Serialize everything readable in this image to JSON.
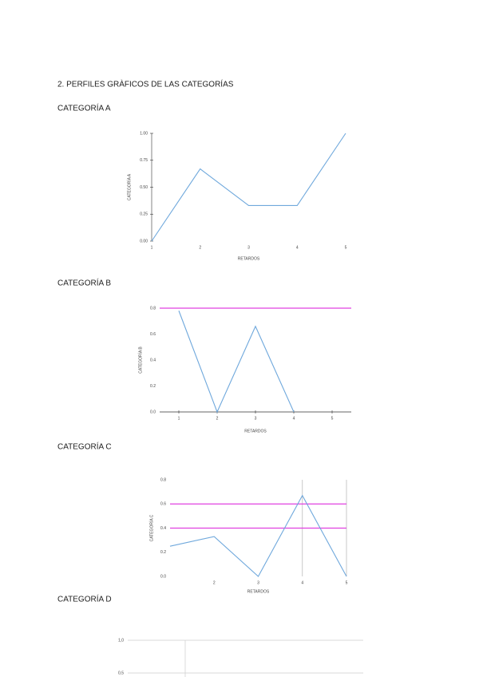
{
  "header": {
    "title": "2. PERFILES GRÀFICOS DE LAS CATEGORÍAS"
  },
  "sections": [
    {
      "title": "CATEGORÍA A",
      "chart_data": {
        "type": "line",
        "x_label": "RETARDOS",
        "y_label": "CATEGORÍA A",
        "x": [
          1,
          2,
          3,
          4,
          5
        ],
        "series": [
          {
            "color": "#6fa8dc",
            "values": [
              0,
              0.67,
              0.33,
              0.33,
              1.0
            ]
          }
        ],
        "xlim": [
          1,
          5
        ],
        "xticks": [
          1,
          2,
          3,
          4,
          5
        ],
        "ylim": [
          0,
          1
        ],
        "yticks": [
          {
            "value": 0,
            "label": "0.00"
          },
          {
            "value": 0.25,
            "label": "0.25"
          },
          {
            "value": 0.5,
            "label": "0.50"
          },
          {
            "value": 0.75,
            "label": "0.75"
          },
          {
            "value": 1,
            "label": "1.00"
          }
        ],
        "spines": [
          "left"
        ]
      }
    },
    {
      "title": "CATEGORÍA B",
      "chart_data": {
        "type": "line",
        "x_label": "RETARDOS",
        "y_label": "CATEGORÍA B",
        "x": [
          1,
          2,
          3,
          4,
          5
        ],
        "series": [
          {
            "color": "#6fa8dc",
            "values": [
              0.78,
              0,
              0.66,
              0,
              null
            ]
          }
        ],
        "xlim": [
          0.5,
          5.5
        ],
        "xticks": [
          1,
          2,
          3,
          4,
          5
        ],
        "ylim": [
          0,
          0.8
        ],
        "yticks": [
          {
            "value": 0,
            "label": "0.0"
          },
          {
            "value": 0.2,
            "label": "0.2"
          },
          {
            "value": 0.4,
            "label": "0.4"
          },
          {
            "value": 0.6,
            "label": "0.6"
          },
          {
            "value": 0.8,
            "label": "0.8"
          }
        ],
        "hlines": [
          {
            "value": 0.8,
            "color": "#e040e0"
          }
        ],
        "spines": [
          "bottom"
        ]
      }
    },
    {
      "title": "CATEGORÍA C",
      "chart_data": {
        "type": "line",
        "x_label": "RETARDOS",
        "y_label": "CATEGORÍA C",
        "x": [
          1,
          2,
          3,
          4,
          5
        ],
        "series": [
          {
            "color": "#6fa8dc",
            "values": [
              0.25,
              0.33,
              0,
              0.67,
              0
            ]
          }
        ],
        "xlim": [
          1,
          5
        ],
        "xticks": [
          2,
          3,
          4,
          5
        ],
        "ylim": [
          0,
          0.8
        ],
        "yticks": [
          {
            "value": 0,
            "label": "0.0"
          },
          {
            "value": 0.2,
            "label": "0.2"
          },
          {
            "value": 0.4,
            "label": "0.4"
          },
          {
            "value": 0.6,
            "label": "0.6"
          },
          {
            "value": 0.8,
            "label": "0.8"
          }
        ],
        "hlines": [
          {
            "value": 0.6,
            "color": "#e040e0"
          },
          {
            "value": 0.4,
            "color": "#e040e0"
          }
        ],
        "vlines": [
          4,
          5
        ],
        "spines": []
      }
    },
    {
      "title": "CATEGORÍA D",
      "chart_data": {
        "type": "line",
        "ylim": [
          0,
          1
        ],
        "yticks": [
          {
            "value": 1,
            "label": "1,0"
          },
          {
            "value": 0.5,
            "label": "0,5"
          }
        ],
        "grid": true,
        "spines": []
      }
    }
  ]
}
